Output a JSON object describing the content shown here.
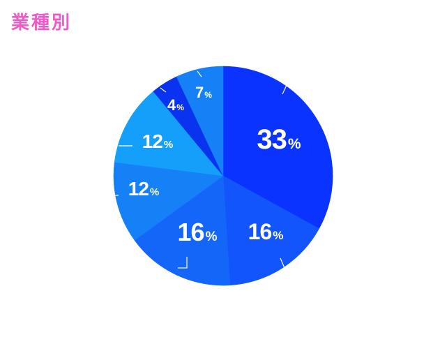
{
  "title": "業種別",
  "colors": {
    "title": "#f05ac8",
    "leader": "#ffffff",
    "label": "#ffffff"
  },
  "chart_data": {
    "type": "pie",
    "title": "業種別",
    "unit": "%",
    "start_angle_deg": 0,
    "direction": "clockwise",
    "legend": "none",
    "slices": [
      {
        "value": 33,
        "label": "33",
        "color": "#0a33ff",
        "label_size": "large"
      },
      {
        "value": 16,
        "label": "16",
        "color": "#1155fb",
        "label_size": "medium"
      },
      {
        "value": 16,
        "label": "16",
        "color": "#1466f9",
        "label_size": "large"
      },
      {
        "value": 12,
        "label": "12",
        "color": "#1680f6",
        "label_size": "medium"
      },
      {
        "value": 12,
        "label": "12",
        "color": "#14a0fa",
        "label_size": "medium"
      },
      {
        "value": 4,
        "label": "4",
        "color": "#0a33ef",
        "label_size": "small"
      },
      {
        "value": 7,
        "label": "7",
        "color": "#1680f6",
        "label_size": "small"
      }
    ]
  }
}
